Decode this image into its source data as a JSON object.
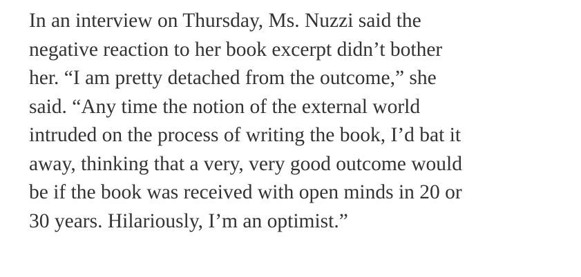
{
  "article": {
    "lines": [
      "In an interview on Thursday, Ms. Nuzzi said the",
      "negative reaction to her book excerpt didn’t bother",
      "her. “I am pretty detached from the outcome,” she",
      "said. “Any time the notion of the external world",
      "intruded on the process of writing the book, I’d bat it",
      "away, thinking that a very, very good outcome would",
      "be if the book was received with open minds in 20 or",
      "30 years. Hilariously, I’m an optimist.”"
    ]
  }
}
